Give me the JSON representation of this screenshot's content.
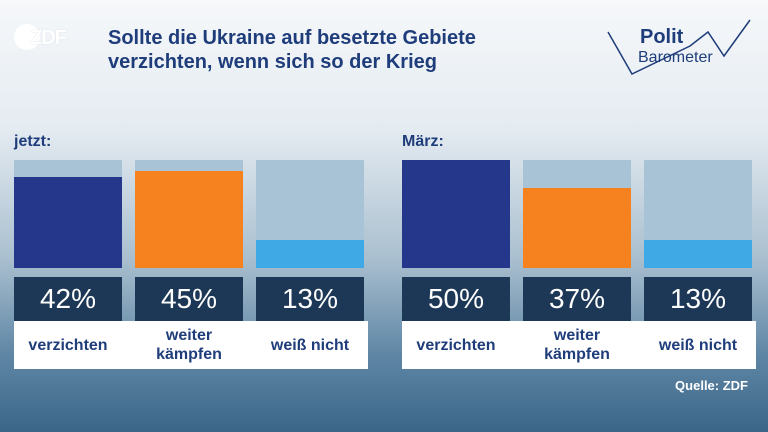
{
  "logo": {
    "text": "ZDF"
  },
  "title": "Sollte die Ukraine auf besetzte Gebiete verzichten, wenn sich so der Krieg",
  "brand": {
    "line1": "Polit",
    "line2": "Barometer"
  },
  "colors": {
    "navy": "#25378a",
    "orange": "#f5821f",
    "lightblue": "#3fa9e6",
    "track": "#a9c3d6",
    "value_box": "#1d3856",
    "title": "#1e3d7a"
  },
  "chart_data": [
    {
      "type": "bar",
      "panel_label": "jetzt:",
      "categories": [
        "verzichten",
        "weiter kämpfen",
        "weiß nicht"
      ],
      "values": [
        42,
        45,
        13
      ],
      "value_labels": [
        "42%",
        "45%",
        "13%"
      ],
      "ylim": [
        0,
        50
      ]
    },
    {
      "type": "bar",
      "panel_label": "März:",
      "categories": [
        "verzichten",
        "weiter kämpfen",
        "weiß nicht"
      ],
      "values": [
        50,
        37,
        13
      ],
      "value_labels": [
        "50%",
        "37%",
        "13%"
      ],
      "ylim": [
        0,
        50
      ]
    }
  ],
  "source": "Quelle: ZDF"
}
